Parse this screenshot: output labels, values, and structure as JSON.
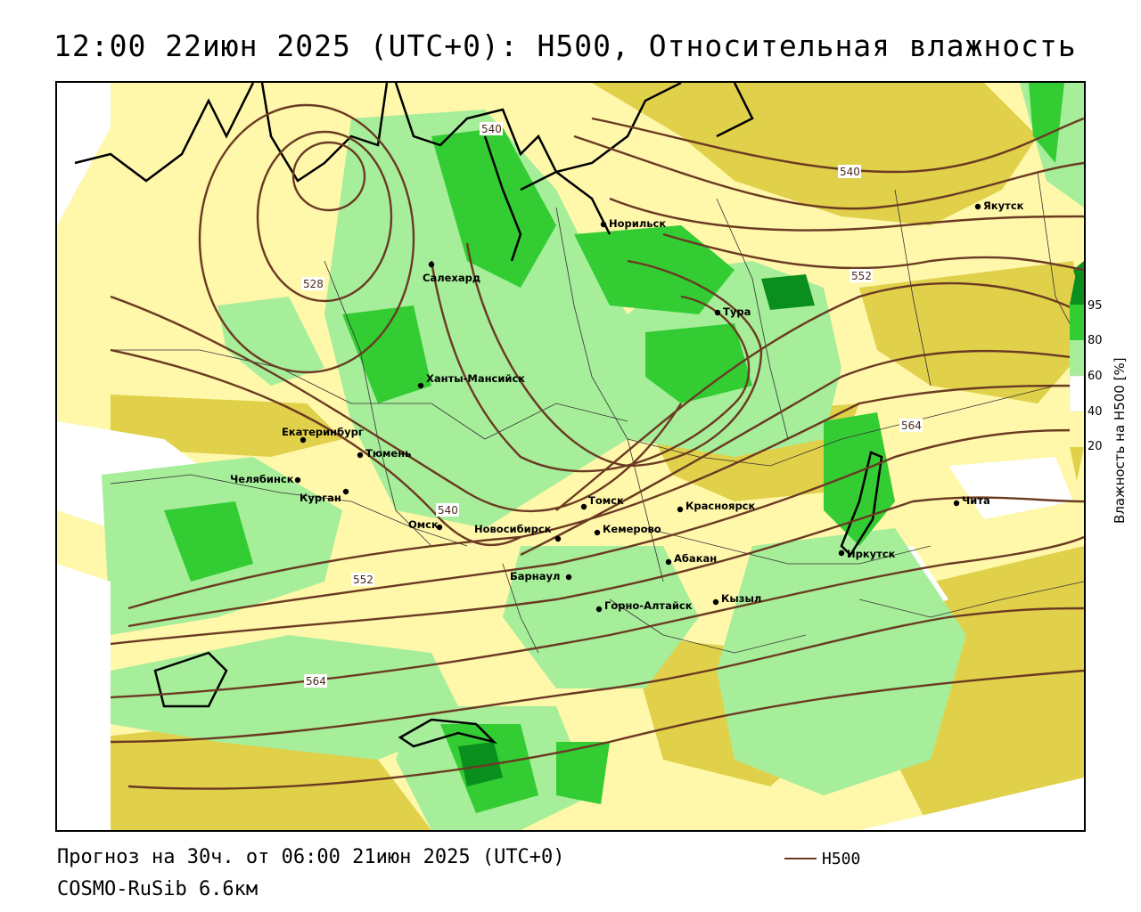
{
  "header": {
    "title": "12:00 22июн 2025 (UTC+0): H500, Относительная влажность"
  },
  "footer": {
    "forecast": "Прогноз на 30ч. от 06:00 21июн 2025 (UTC+0)",
    "model": "COSMO-RuSib 6.6км"
  },
  "legend": {
    "h500_label": "H500",
    "colorbar_title": "Влажность на H500 [%]",
    "ticks": [
      "95",
      "80",
      "60",
      "40",
      "20"
    ]
  },
  "colors": {
    "humid_dark": "#0a8f1e",
    "humid_mid": "#33cc33",
    "humid_light": "#a6ee9a",
    "neutral": "#ffffff",
    "dry_light": "#fff7aa",
    "dry_mid": "#e0d04a",
    "isohypse": "#6b3a22"
  },
  "cities": [
    {
      "name": "Норильск"
    },
    {
      "name": "Якутск"
    },
    {
      "name": "Салехард"
    },
    {
      "name": "Тура"
    },
    {
      "name": "Ханты-Мансийск"
    },
    {
      "name": "Екатеринбург"
    },
    {
      "name": "Тюмень"
    },
    {
      "name": "Челябинск"
    },
    {
      "name": "Курган"
    },
    {
      "name": "Омск"
    },
    {
      "name": "Томск"
    },
    {
      "name": "Красноярск"
    },
    {
      "name": "Новосибирск"
    },
    {
      "name": "Кемерово"
    },
    {
      "name": "Абакан"
    },
    {
      "name": "Барнаул"
    },
    {
      "name": "Иркутск"
    },
    {
      "name": "Чита"
    },
    {
      "name": "Горно-Алтайск"
    },
    {
      "name": "Кызыл"
    }
  ],
  "isohypse_labels": [
    "540",
    "540",
    "528",
    "552",
    "564",
    "540",
    "552",
    "564"
  ]
}
